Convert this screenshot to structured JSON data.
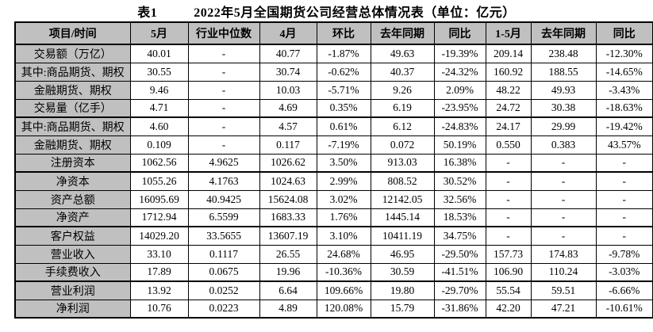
{
  "title": {
    "label": "表1",
    "caption": "2022年5月全国期货公司经营总体情况表（单位：亿元）"
  },
  "colors": {
    "header_bg": "#c0c0c0",
    "label_bg": "#c0c0c0",
    "border": "#000000",
    "text": "#000000"
  },
  "table": {
    "columns": [
      "项目/时间",
      "5月",
      "行业中位数",
      "4月",
      "环比",
      "去年同期",
      "同比",
      "1-5月",
      "去年同期",
      "同比"
    ],
    "rows": [
      {
        "label": "交易额（万亿）",
        "cells": [
          "40.01",
          "-",
          "40.77",
          "-1.87%",
          "49.63",
          "-19.39%",
          "209.14",
          "238.48",
          "-12.30%"
        ],
        "group_end": false
      },
      {
        "label": "其中:商品期货、期权",
        "cells": [
          "30.55",
          "-",
          "30.74",
          "-0.62%",
          "40.37",
          "-24.32%",
          "160.92",
          "188.55",
          "-14.65%"
        ],
        "group_end": false
      },
      {
        "label": "金融期货、期权",
        "cells": [
          "9.46",
          "-",
          "10.03",
          "-5.71%",
          "9.26",
          "2.09%",
          "48.22",
          "49.93",
          "-3.43%"
        ],
        "group_end": false
      },
      {
        "label": "交易量（亿手）",
        "cells": [
          "4.71",
          "-",
          "4.69",
          "0.35%",
          "6.19",
          "-23.95%",
          "24.72",
          "30.38",
          "-18.63%"
        ],
        "group_end": true
      },
      {
        "label": "其中:商品期货、期权",
        "cells": [
          "4.60",
          "-",
          "4.57",
          "0.61%",
          "6.12",
          "-24.83%",
          "24.17",
          "29.99",
          "-19.42%"
        ],
        "group_end": false
      },
      {
        "label": "金融期货、期权",
        "cells": [
          "0.109",
          "-",
          "0.117",
          "-7.19%",
          "0.072",
          "50.19%",
          "0.550",
          "0.383",
          "43.57%"
        ],
        "group_end": false
      },
      {
        "label": "注册资本",
        "cells": [
          "1062.56",
          "4.9625",
          "1026.62",
          "3.50%",
          "913.03",
          "16.38%",
          "-",
          "-",
          "-"
        ],
        "group_end": true
      },
      {
        "label": "净资本",
        "cells": [
          "1055.26",
          "4.1763",
          "1024.63",
          "2.99%",
          "808.52",
          "30.52%",
          "-",
          "-",
          "-"
        ],
        "group_end": false
      },
      {
        "label": "资产总额",
        "cells": [
          "16095.69",
          "40.9425",
          "15624.08",
          "3.02%",
          "12142.05",
          "32.56%",
          "-",
          "-",
          "-"
        ],
        "group_end": false
      },
      {
        "label": "净资产",
        "cells": [
          "1712.94",
          "6.5599",
          "1683.33",
          "1.76%",
          "1445.14",
          "18.53%",
          "-",
          "-",
          "-"
        ],
        "group_end": true
      },
      {
        "label": "客户权益",
        "cells": [
          "14029.20",
          "33.5655",
          "13607.19",
          "3.10%",
          "10411.19",
          "34.75%",
          "-",
          "-",
          "-"
        ],
        "group_end": false
      },
      {
        "label": "营业收入",
        "cells": [
          "33.10",
          "0.1117",
          "26.55",
          "24.68%",
          "46.95",
          "-29.50%",
          "157.73",
          "174.83",
          "-9.78%"
        ],
        "group_end": false
      },
      {
        "label": "手续费收入",
        "cells": [
          "17.89",
          "0.0675",
          "19.96",
          "-10.36%",
          "30.59",
          "-41.51%",
          "106.90",
          "110.24",
          "-3.03%"
        ],
        "group_end": true
      },
      {
        "label": "营业利润",
        "cells": [
          "13.92",
          "0.0252",
          "6.64",
          "109.66%",
          "19.80",
          "-29.70%",
          "55.54",
          "59.51",
          "-6.66%"
        ],
        "group_end": false
      },
      {
        "label": "净利润",
        "cells": [
          "10.76",
          "0.0223",
          "4.89",
          "120.08%",
          "15.79",
          "-31.86%",
          "42.20",
          "47.21",
          "-10.61%"
        ],
        "group_end": false
      }
    ]
  }
}
